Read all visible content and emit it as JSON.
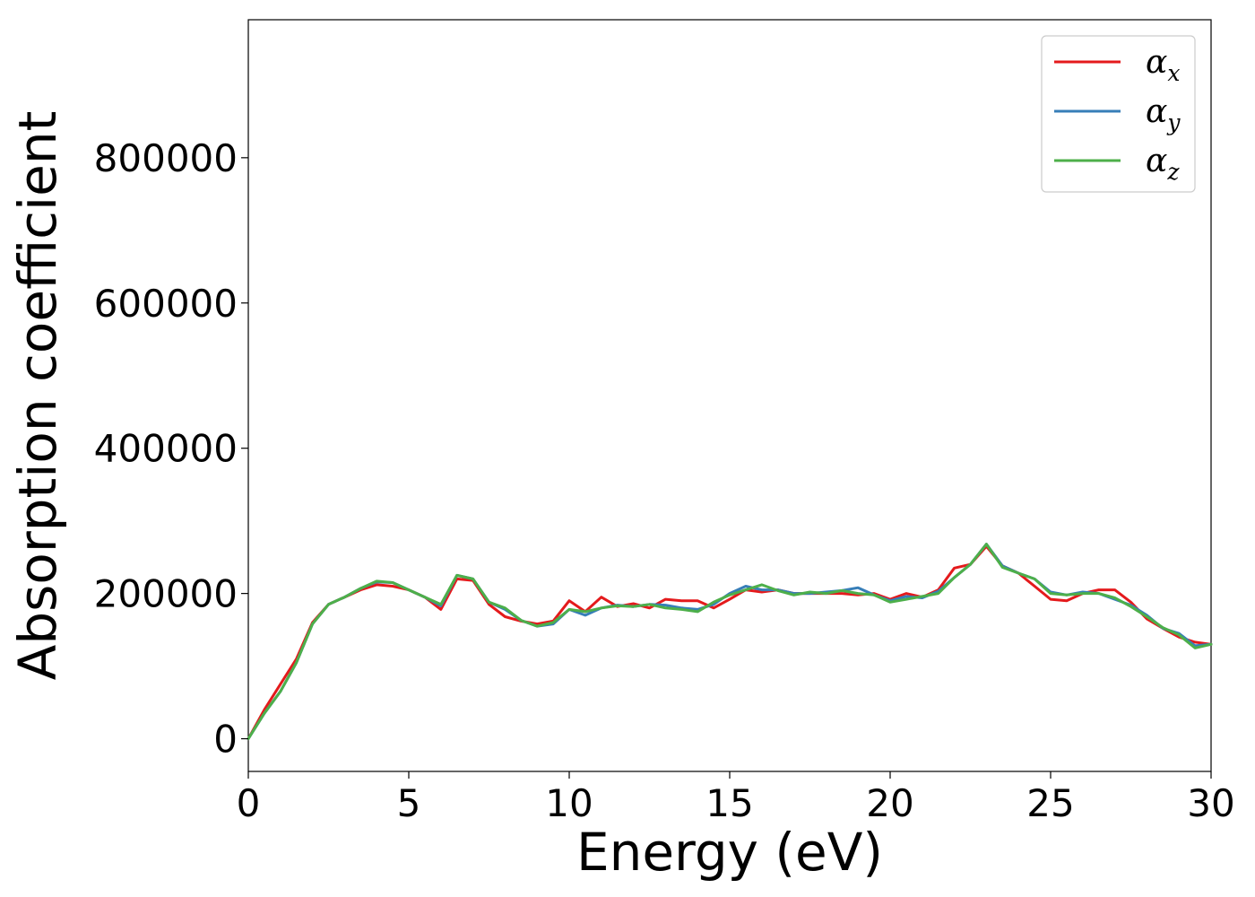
{
  "chart_data": {
    "type": "line",
    "title": "",
    "xlabel": "Energy (eV)",
    "ylabel": "Absorption coefficient",
    "xlim": [
      0,
      30
    ],
    "ylim": [
      -45000,
      990000
    ],
    "xticks": [
      0,
      5,
      10,
      15,
      20,
      25,
      30
    ],
    "yticks": [
      0,
      200000,
      400000,
      600000,
      800000
    ],
    "grid": false,
    "legend_position": "top-right",
    "x": [
      0,
      0.5,
      1,
      1.5,
      2,
      2.5,
      3,
      3.5,
      4,
      4.5,
      5,
      5.5,
      6,
      6.5,
      7,
      7.5,
      8,
      8.5,
      9,
      9.5,
      10,
      10.5,
      11,
      11.5,
      12,
      12.5,
      13,
      13.5,
      14,
      14.5,
      15,
      15.5,
      16,
      16.5,
      17,
      17.5,
      18,
      18.5,
      19,
      19.5,
      20,
      20.5,
      21,
      21.5,
      22,
      22.5,
      23,
      23.5,
      24,
      24.5,
      25,
      25.5,
      26,
      26.5,
      27,
      27.5,
      28,
      28.5,
      29,
      29.5,
      30
    ],
    "series": [
      {
        "name": "α",
        "subscript": "x",
        "color": "#e41a1c",
        "values": [
          0,
          40000,
          75000,
          110000,
          160000,
          185000,
          195000,
          205000,
          212000,
          210000,
          205000,
          195000,
          178000,
          220000,
          218000,
          185000,
          168000,
          162000,
          158000,
          162000,
          190000,
          175000,
          195000,
          182000,
          186000,
          180000,
          192000,
          190000,
          190000,
          180000,
          192000,
          205000,
          202000,
          205000,
          200000,
          200000,
          200000,
          200000,
          198000,
          200000,
          192000,
          200000,
          195000,
          205000,
          235000,
          240000,
          265000,
          238000,
          228000,
          210000,
          192000,
          190000,
          200000,
          205000,
          205000,
          188000,
          165000,
          152000,
          140000,
          133000,
          130000
        ]
      },
      {
        "name": "α",
        "subscript": "y",
        "color": "#377eb8",
        "values": [
          0,
          35000,
          65000,
          105000,
          158000,
          185000,
          195000,
          207000,
          216000,
          215000,
          205000,
          195000,
          183000,
          225000,
          220000,
          188000,
          178000,
          163000,
          155000,
          158000,
          178000,
          170000,
          180000,
          184000,
          182000,
          185000,
          184000,
          180000,
          178000,
          185000,
          200000,
          210000,
          205000,
          205000,
          200000,
          200000,
          202000,
          204000,
          208000,
          198000,
          190000,
          196000,
          194000,
          203000,
          222000,
          240000,
          268000,
          238000,
          228000,
          220000,
          202000,
          198000,
          202000,
          200000,
          192000,
          184000,
          170000,
          152000,
          145000,
          128000,
          130000
        ]
      },
      {
        "name": "α",
        "subscript": "z",
        "color": "#4daf4a",
        "values": [
          0,
          35000,
          65000,
          105000,
          158000,
          185000,
          195000,
          207000,
          217000,
          215000,
          205000,
          195000,
          185000,
          225000,
          220000,
          188000,
          180000,
          163000,
          155000,
          160000,
          178000,
          175000,
          180000,
          183000,
          182000,
          185000,
          180000,
          178000,
          175000,
          188000,
          198000,
          205000,
          212000,
          204000,
          198000,
          202000,
          200000,
          204000,
          200000,
          198000,
          188000,
          192000,
          196000,
          200000,
          222000,
          240000,
          268000,
          236000,
          228000,
          220000,
          200000,
          198000,
          200000,
          200000,
          194000,
          182000,
          168000,
          153000,
          143000,
          125000,
          130000
        ]
      }
    ]
  }
}
